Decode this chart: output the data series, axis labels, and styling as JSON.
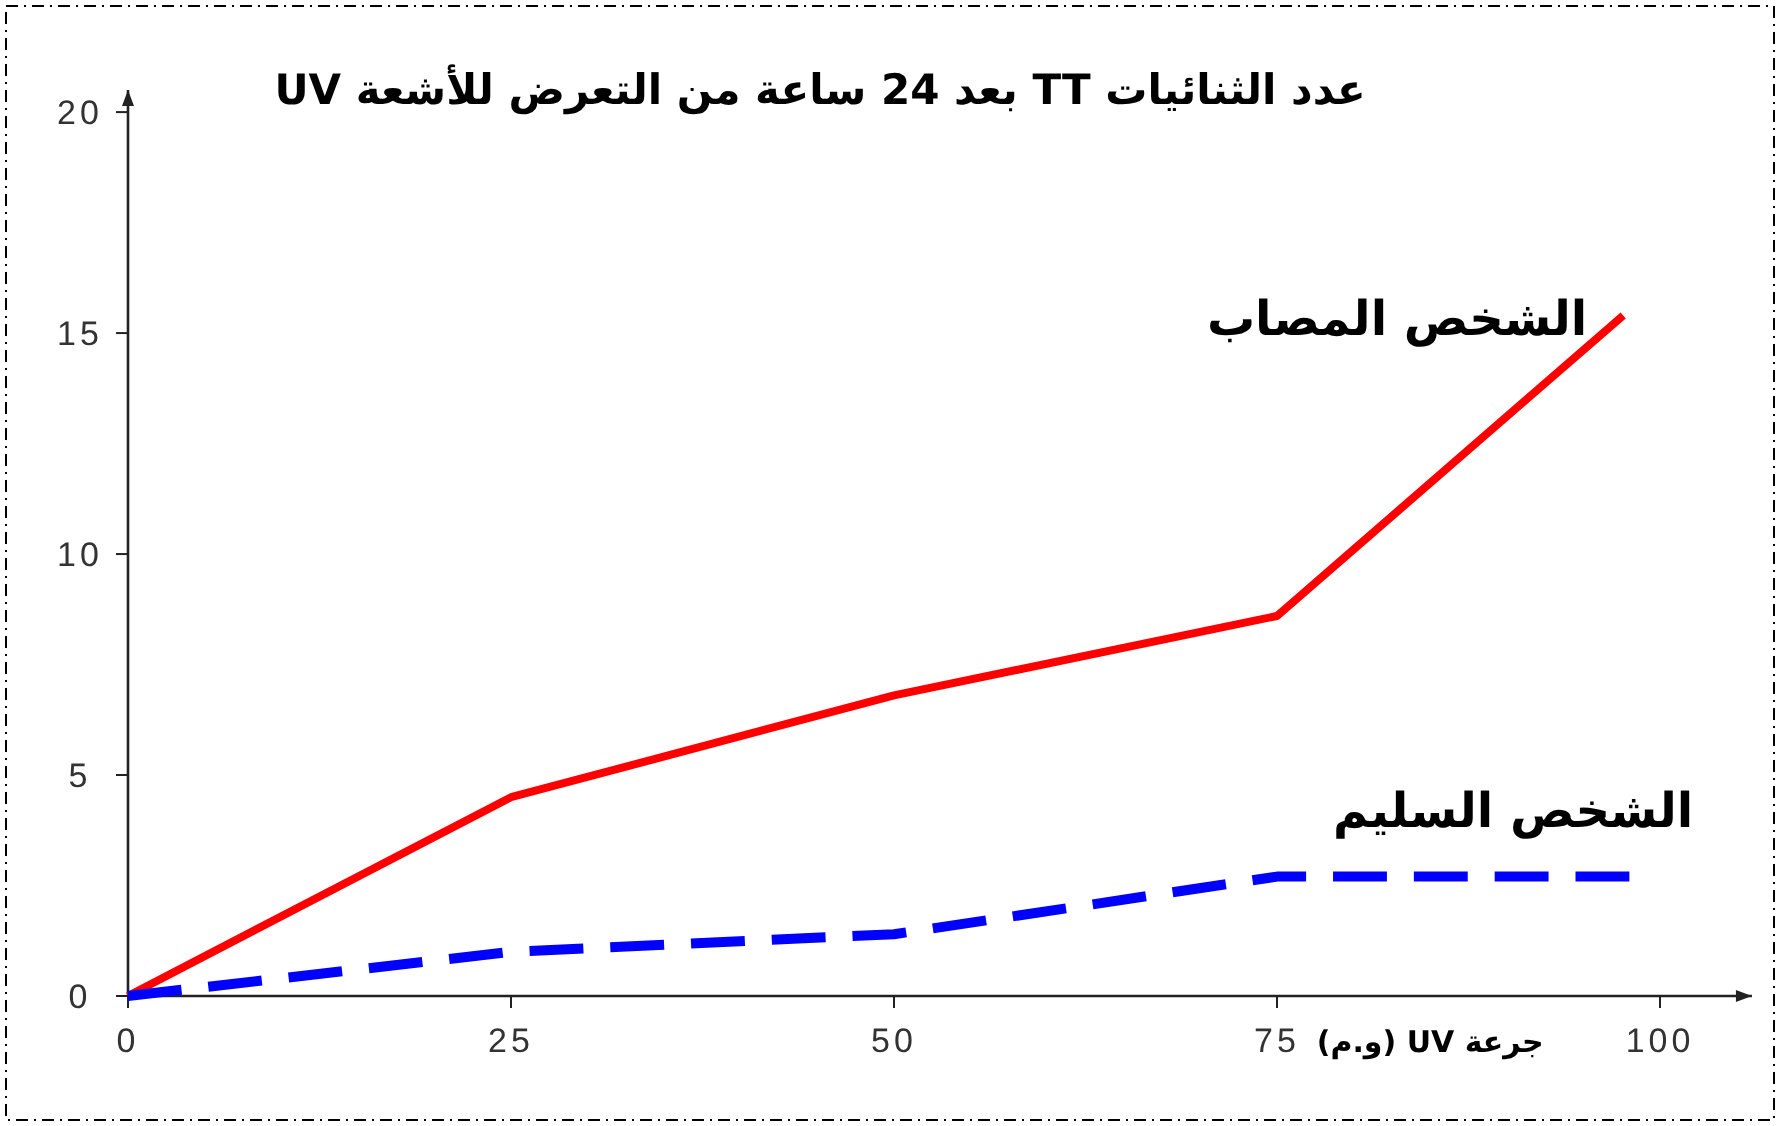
{
  "chart_data": {
    "type": "line",
    "title": "عدد الثنائيات TT بعد 24 ساعة من التعرض للأشعة UV",
    "xlabel": "جرعة UV (و.م)",
    "series": [
      {
        "name": "الشخص المصاب",
        "color": "#ff0000",
        "line_style": "solid",
        "x": [
          0,
          25,
          50,
          75,
          97.6
        ],
        "values": [
          0,
          4.5,
          6.8,
          8.6,
          15.4
        ]
      },
      {
        "name": "الشخص السليم",
        "color": "#0000ff",
        "line_style": "dashed",
        "x": [
          0,
          25,
          50,
          75,
          98
        ],
        "values": [
          0,
          1.0,
          1.4,
          2.7,
          2.7
        ]
      }
    ],
    "xlim": [
      0,
      106
    ],
    "ylim": [
      0,
      20.5
    ],
    "xticks": [
      0,
      25,
      50,
      75,
      100
    ],
    "yticks": [
      0,
      5,
      10,
      15,
      20
    ],
    "grid": false,
    "marker": "none"
  }
}
